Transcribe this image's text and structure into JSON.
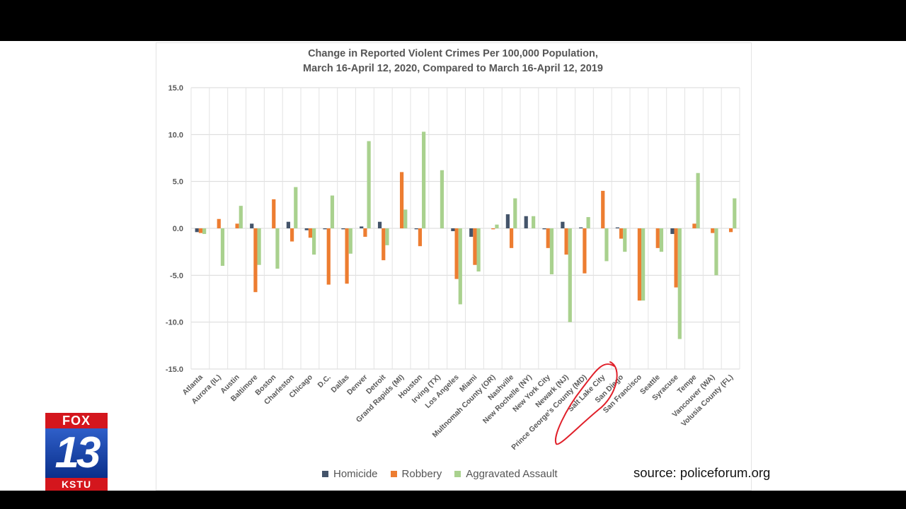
{
  "source": "source: policeforum.org",
  "logo": {
    "top": "FOX",
    "number": "13",
    "bottom": "KSTU"
  },
  "colors": {
    "homicide": "#44546a",
    "robbery": "#ed7d31",
    "assault": "#a9d18e",
    "annotation": "#e0202a"
  },
  "chart_data": {
    "type": "bar",
    "title": [
      "Change in Reported Violent Crimes Per 100,000 Population,",
      "March 16-April 12, 2020, Compared to March 16-April 12, 2019"
    ],
    "xlabel": "",
    "ylabel": "",
    "ylim": [
      -15,
      15
    ],
    "yticks": [
      15.0,
      10.0,
      5.0,
      0.0,
      -5.0,
      -10.0,
      -15.0
    ],
    "grid": true,
    "legend_position": "bottom",
    "categories": [
      "Atlanta",
      "Aurora (IL)",
      "Austin",
      "Baltimore",
      "Boston",
      "Charleston",
      "Chicago",
      "D.C.",
      "Dallas",
      "Denver",
      "Detroit",
      "Grand Rapids (MI)",
      "Houston",
      "Irving (TX)",
      "Los Angeles",
      "Miami",
      "Multnomah County (OR)",
      "Nashville",
      "New Rochelle (NY)",
      "New York City",
      "Newark (NJ)",
      "Prince George's County (MD)",
      "Salt Lake City",
      "San Diego",
      "San Francisco",
      "Seattle",
      "Syracuse",
      "Tempe",
      "Vancouver (WA)",
      "Volusia County (FL)"
    ],
    "series": [
      {
        "name": "Homicide",
        "values": [
          -0.4,
          0,
          0,
          0.5,
          0,
          0.7,
          -0.2,
          -0.1,
          -0.1,
          0.2,
          0.7,
          0,
          -0.1,
          0,
          -0.3,
          -0.9,
          0,
          1.5,
          1.3,
          -0.1,
          0.7,
          0.1,
          0,
          0.1,
          0,
          0,
          -0.6,
          0,
          0,
          0
        ]
      },
      {
        "name": "Robbery",
        "values": [
          -0.5,
          1.0,
          0.5,
          -6.8,
          3.1,
          -1.4,
          -1.0,
          -6.0,
          -5.9,
          -0.9,
          -3.4,
          6.0,
          -1.9,
          0,
          -5.4,
          -3.9,
          -0.1,
          -2.1,
          0,
          -2.1,
          -2.8,
          -4.8,
          4.0,
          -1.1,
          -7.7,
          -2.1,
          -6.3,
          0.5,
          -0.5,
          -0.4
        ]
      },
      {
        "name": "Aggravated Assault",
        "values": [
          -0.6,
          -4.0,
          2.4,
          -3.9,
          -4.3,
          4.4,
          -2.8,
          3.5,
          -2.7,
          9.3,
          -1.8,
          2.0,
          10.3,
          6.2,
          -8.1,
          -4.6,
          0.4,
          3.2,
          1.3,
          -4.9,
          -10.0,
          1.2,
          -3.5,
          -2.5,
          -7.7,
          -2.5,
          -11.8,
          5.9,
          -5.0,
          3.2
        ]
      }
    ]
  }
}
